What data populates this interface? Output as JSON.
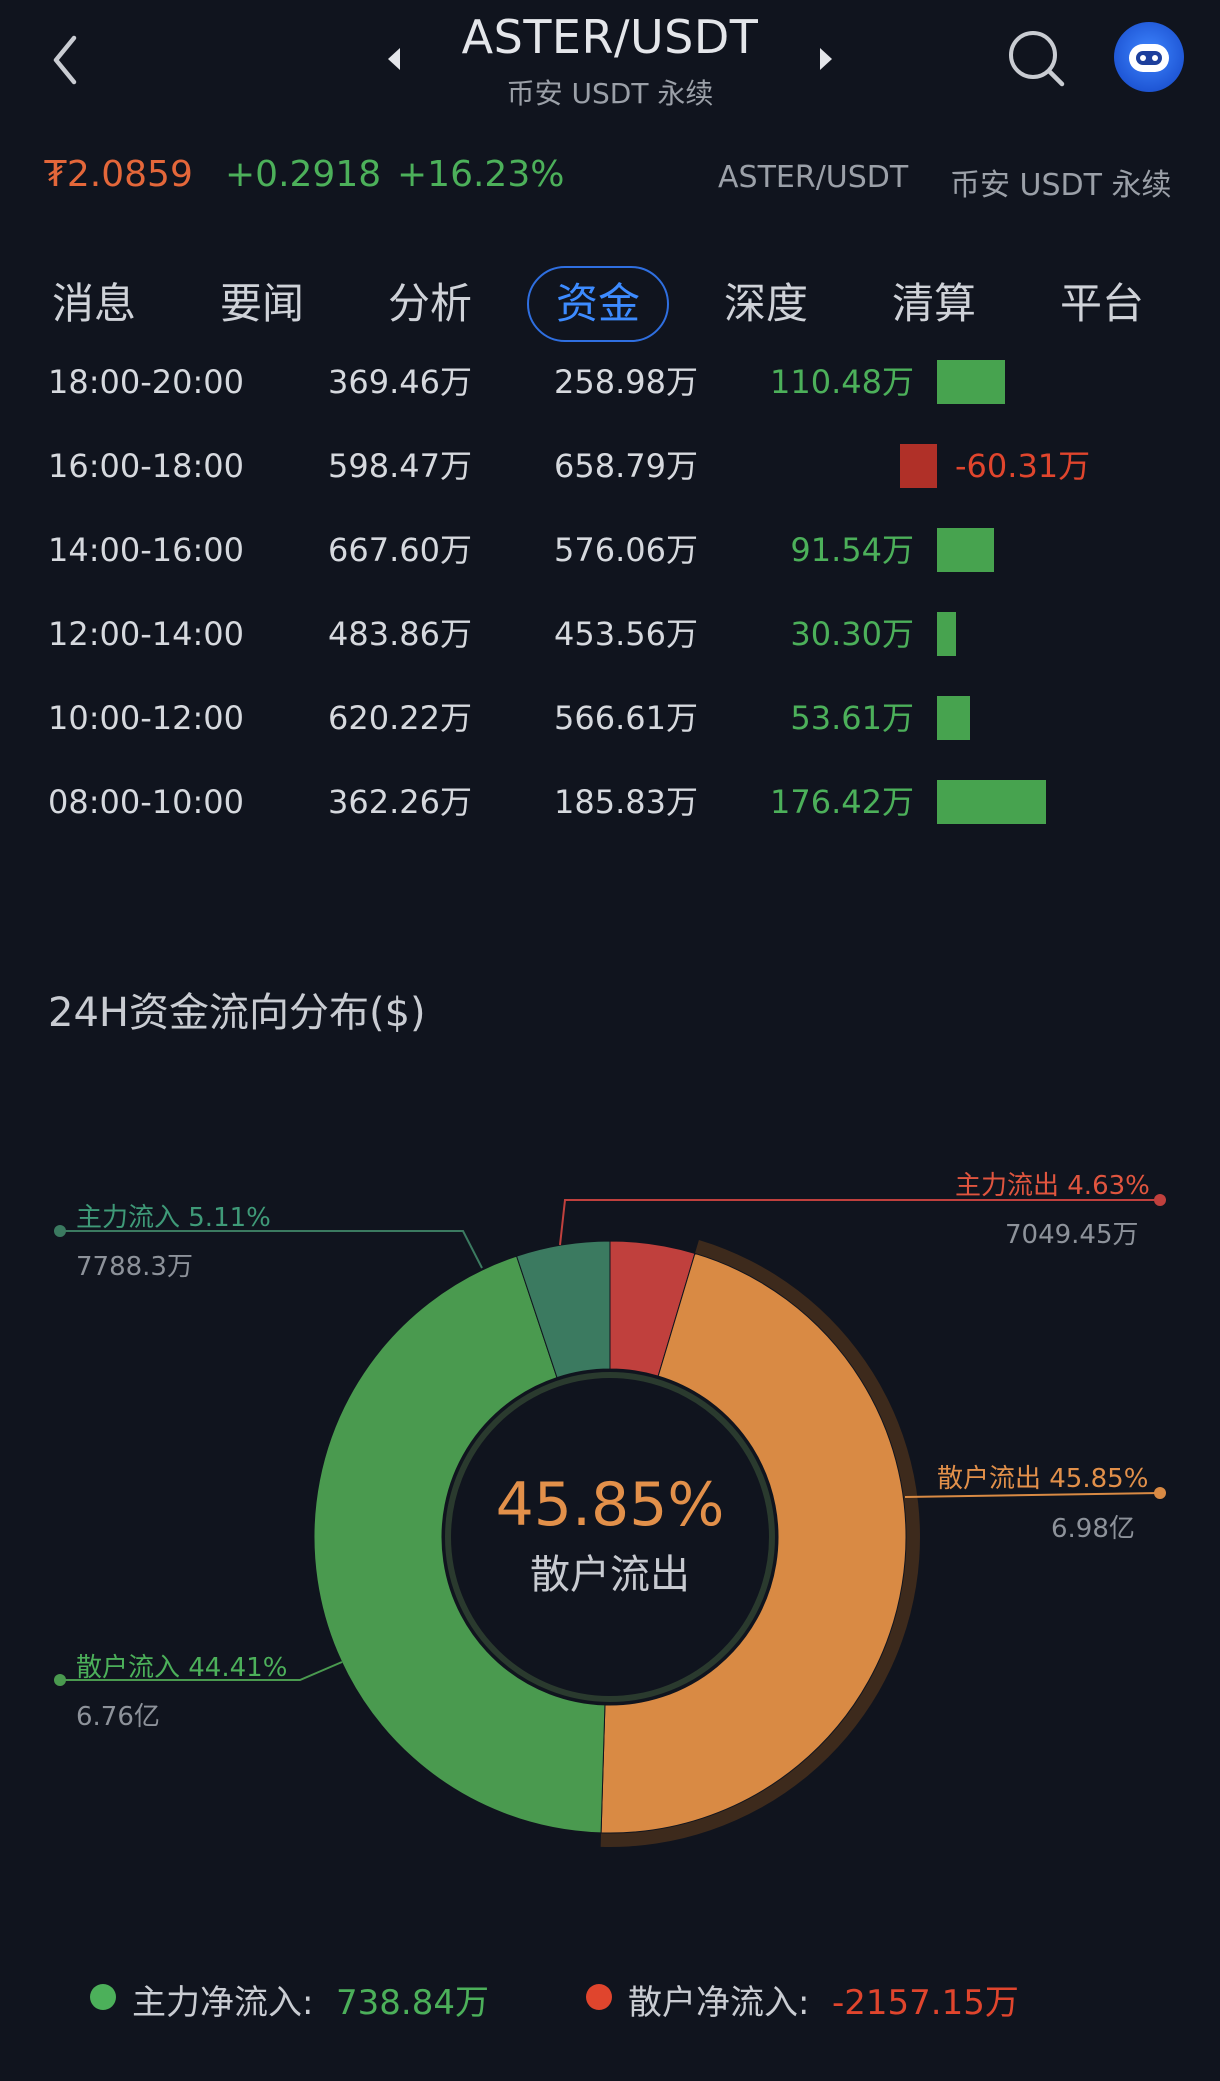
{
  "header": {
    "pair": "ASTER/USDT",
    "market": "币安 USDT 永续"
  },
  "ticker": {
    "price": "₮2.0859",
    "change_abs": "+0.2918",
    "change_pct": "+16.23%",
    "pair": "ASTER/USDT",
    "market": "币安 USDT 永续"
  },
  "tabs": [
    "消息",
    "要闻",
    "分析",
    "资金",
    "深度",
    "清算",
    "平台"
  ],
  "active_tab": "资金",
  "flow_table": {
    "rows": [
      {
        "time": "18:00-20:00",
        "inflow": "369.46万",
        "outflow": "258.98万",
        "net": "110.48万",
        "net_value": 110.48
      },
      {
        "time": "16:00-18:00",
        "inflow": "598.47万",
        "outflow": "658.79万",
        "net": "-60.31万",
        "net_value": -60.31
      },
      {
        "time": "14:00-16:00",
        "inflow": "667.60万",
        "outflow": "576.06万",
        "net": "91.54万",
        "net_value": 91.54
      },
      {
        "time": "12:00-14:00",
        "inflow": "483.86万",
        "outflow": "453.56万",
        "net": "30.30万",
        "net_value": 30.3
      },
      {
        "time": "10:00-12:00",
        "inflow": "620.22万",
        "outflow": "566.61万",
        "net": "53.61万",
        "net_value": 53.61
      },
      {
        "time": "08:00-10:00",
        "inflow": "362.26万",
        "outflow": "185.83万",
        "net": "176.42万",
        "net_value": 176.42
      }
    ]
  },
  "distribution": {
    "title": "24H资金流向分布($)",
    "center_pct": "45.85%",
    "center_label": "散户流出",
    "slices": [
      {
        "label": "主力流出 4.63%",
        "value": "7049.45万",
        "pct": 4.63,
        "color": "#c0403d"
      },
      {
        "label": "散户流出 45.85%",
        "value": "6.98亿",
        "pct": 45.85,
        "color": "#d98a44"
      },
      {
        "label": "散户流入 44.41%",
        "value": "6.76亿",
        "pct": 44.41,
        "color": "#4a9a4f"
      },
      {
        "label": "主力流入 5.11%",
        "value": "7788.3万",
        "pct": 5.11,
        "color": "#3b7a60"
      }
    ]
  },
  "summary": {
    "main_label": "主力净流入:",
    "main_value": "738.84万",
    "retail_label": "散户净流入:",
    "retail_value": "-2157.15万",
    "main_color": "#4cb05a",
    "retail_color": "#e0452d"
  },
  "icons": {
    "back": "chevron-left-icon",
    "prev": "triangle-left-icon",
    "next": "triangle-right-icon",
    "search": "search-icon",
    "avatar": "robot-avatar-icon"
  }
}
